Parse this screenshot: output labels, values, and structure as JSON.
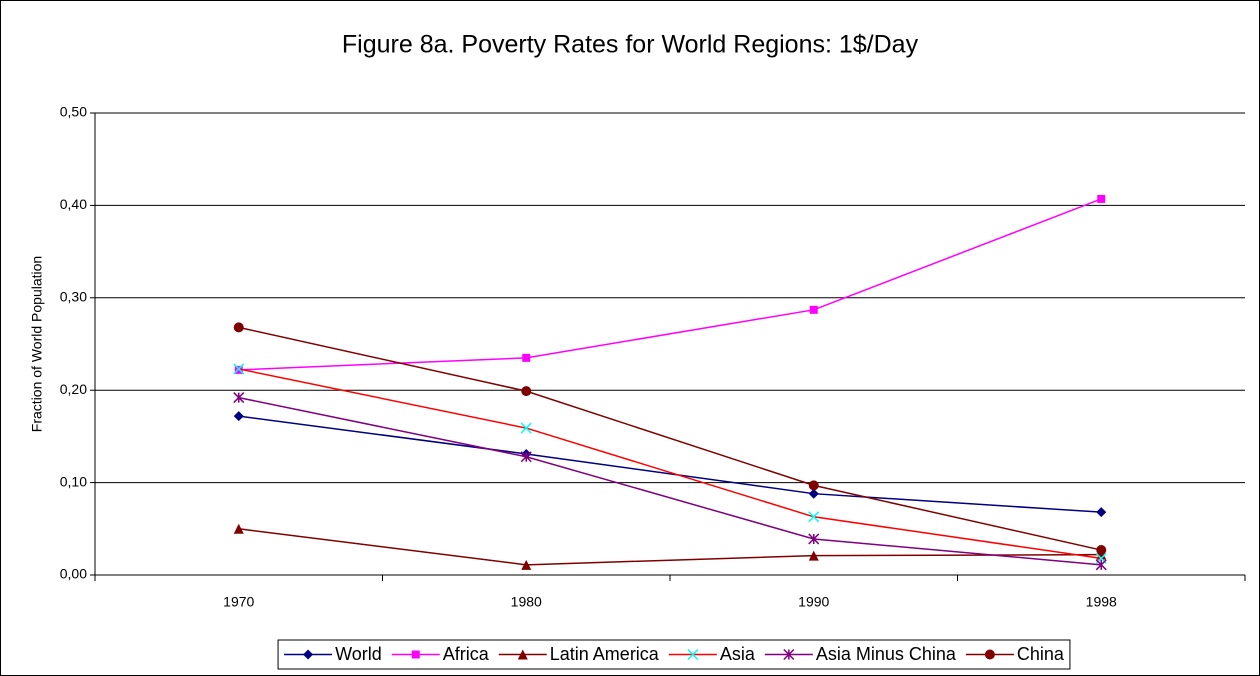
{
  "chart_data": {
    "type": "line",
    "title": "Figure 8a. Poverty Rates for World Regions: 1$/Day",
    "y_label": "Fraction of World Population",
    "categories": [
      "1970",
      "1980",
      "1990",
      "1998"
    ],
    "series": [
      {
        "name": "World",
        "color": "#000080",
        "marker": "diamond",
        "marker_color": "#000080",
        "values": [
          0.172,
          0.131,
          0.088,
          0.068
        ]
      },
      {
        "name": "Africa",
        "color": "#ff00ff",
        "marker": "square",
        "marker_color": "#ff00ff",
        "values": [
          0.222,
          0.235,
          0.287,
          0.407
        ]
      },
      {
        "name": "Latin America",
        "color": "#800000",
        "marker": "triangle",
        "marker_color": "#800000",
        "values": [
          0.05,
          0.011,
          0.021,
          0.022
        ]
      },
      {
        "name": "Asia",
        "color": "#ff0000",
        "marker": "x",
        "marker_color": "#00ffff",
        "values": [
          0.223,
          0.159,
          0.063,
          0.018
        ]
      },
      {
        "name": "Asia Minus China",
        "color": "#800080",
        "marker": "star",
        "marker_color": "#800080",
        "values": [
          0.192,
          0.128,
          0.039,
          0.011
        ]
      },
      {
        "name": "China",
        "color": "#800000",
        "marker": "circle",
        "marker_color": "#800000",
        "values": [
          0.268,
          0.199,
          0.097,
          0.027
        ]
      }
    ],
    "ylim": [
      0,
      0.5
    ],
    "yticks": [
      {
        "value": 0,
        "label": "0,00"
      },
      {
        "value": 0.1,
        "label": "0,10"
      },
      {
        "value": 0.2,
        "label": "0,20"
      },
      {
        "value": 0.3,
        "label": "0,30"
      },
      {
        "value": 0.4,
        "label": "0,40"
      },
      {
        "value": 0.5,
        "label": "0,50"
      }
    ],
    "grid": true,
    "legend": "bottom"
  }
}
